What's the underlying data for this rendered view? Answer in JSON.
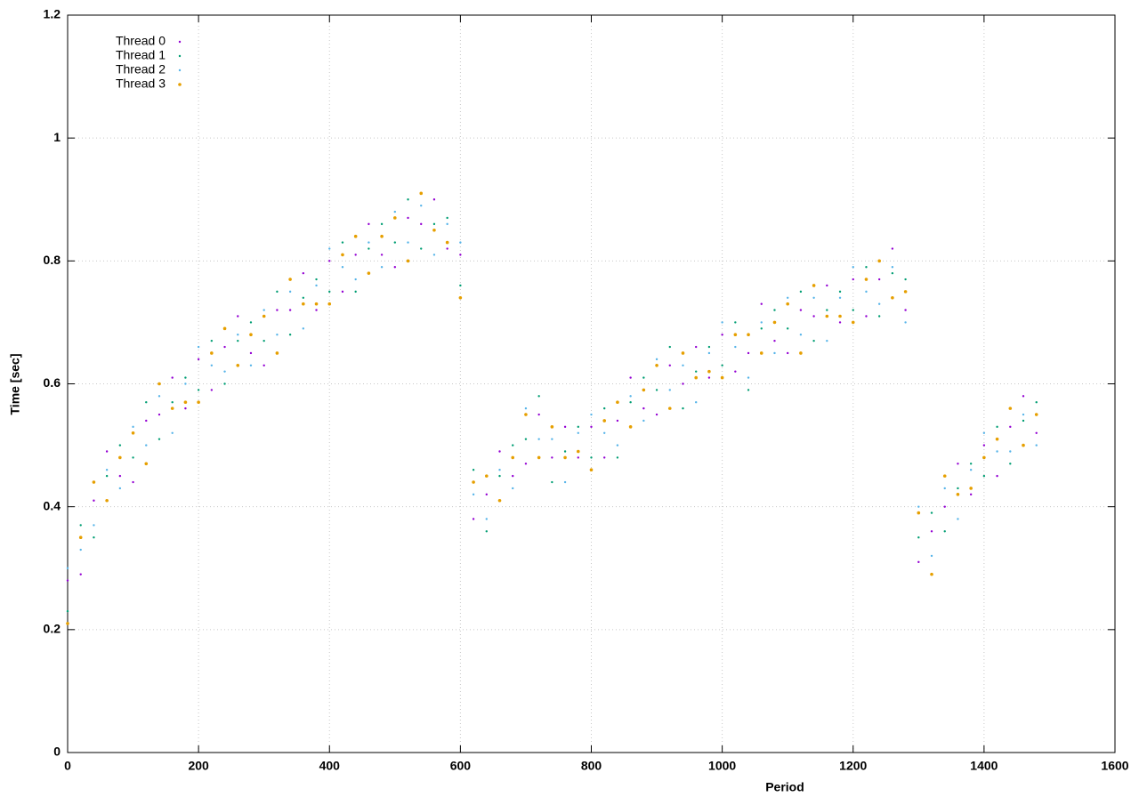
{
  "chart_data": {
    "type": "scatter",
    "xlabel": "Period",
    "ylabel": "Time [sec]",
    "xlim": [
      0,
      1600
    ],
    "xticks": [
      0,
      200,
      400,
      600,
      800,
      1000,
      1200,
      1400,
      1600
    ],
    "ylim": [
      0,
      1.2
    ],
    "yticks": [
      0,
      0.2,
      0.4,
      0.6,
      0.8,
      1,
      1.2
    ],
    "grid": true,
    "legend": "top-left",
    "x": [
      0,
      20,
      40,
      60,
      80,
      100,
      120,
      140,
      160,
      180,
      200,
      220,
      240,
      260,
      280,
      300,
      320,
      340,
      360,
      380,
      400,
      420,
      440,
      460,
      480,
      500,
      520,
      540,
      560,
      580,
      600,
      620,
      640,
      660,
      680,
      700,
      720,
      740,
      760,
      780,
      800,
      820,
      840,
      860,
      880,
      900,
      920,
      940,
      960,
      980,
      1000,
      1020,
      1040,
      1060,
      1080,
      1100,
      1120,
      1140,
      1160,
      1180,
      1200,
      1220,
      1240,
      1260,
      1280,
      1300,
      1320,
      1340,
      1360,
      1380,
      1400,
      1420,
      1440,
      1460,
      1480
    ],
    "series": [
      {
        "name": "Thread 0",
        "color": "#9400d3",
        "values": [
          0.28,
          0.29,
          0.41,
          0.49,
          0.45,
          0.44,
          0.54,
          0.55,
          0.61,
          0.56,
          0.64,
          0.59,
          0.66,
          0.71,
          0.65,
          0.63,
          0.72,
          0.72,
          0.78,
          0.72,
          0.8,
          0.75,
          0.81,
          0.86,
          0.81,
          0.79,
          0.87,
          0.86,
          0.9,
          0.82,
          0.81,
          0.38,
          0.42,
          0.49,
          0.45,
          0.47,
          0.55,
          0.48,
          0.53,
          0.48,
          0.53,
          0.48,
          0.54,
          0.61,
          0.56,
          0.55,
          0.63,
          0.6,
          0.66,
          0.61,
          0.68,
          0.62,
          0.65,
          0.73,
          0.67,
          0.65,
          0.72,
          0.71,
          0.76,
          0.7,
          0.77,
          0.71,
          0.77,
          0.82,
          0.72,
          0.31,
          0.36,
          0.4,
          0.47,
          0.42,
          0.5,
          0.45,
          0.53,
          0.58,
          0.52
        ]
      },
      {
        "name": "Thread 1",
        "color": "#009e73",
        "values": [
          0.23,
          0.37,
          0.35,
          0.45,
          0.5,
          0.48,
          0.57,
          0.51,
          0.57,
          0.61,
          0.59,
          0.67,
          0.6,
          0.67,
          0.7,
          0.67,
          0.75,
          0.68,
          0.74,
          0.77,
          0.75,
          0.83,
          0.75,
          0.82,
          0.86,
          0.83,
          0.9,
          0.82,
          0.86,
          0.87,
          0.76,
          0.46,
          0.36,
          0.45,
          0.5,
          0.51,
          0.58,
          0.44,
          0.49,
          0.53,
          0.48,
          0.56,
          0.48,
          0.57,
          0.61,
          0.59,
          0.66,
          0.56,
          0.62,
          0.66,
          0.63,
          0.7,
          0.59,
          0.69,
          0.72,
          0.69,
          0.75,
          0.67,
          0.72,
          0.75,
          0.72,
          0.79,
          0.71,
          0.78,
          0.77,
          0.35,
          0.39,
          0.36,
          0.43,
          0.47,
          0.45,
          0.53,
          0.47,
          0.54,
          0.57
        ]
      },
      {
        "name": "Thread 2",
        "color": "#56b4e9",
        "values": [
          0.3,
          0.33,
          0.37,
          0.46,
          0.43,
          0.53,
          0.5,
          0.58,
          0.52,
          0.6,
          0.66,
          0.63,
          0.62,
          0.68,
          0.63,
          0.72,
          0.68,
          0.75,
          0.69,
          0.76,
          0.82,
          0.79,
          0.77,
          0.83,
          0.79,
          0.88,
          0.83,
          0.89,
          0.81,
          0.86,
          0.83,
          0.42,
          0.38,
          0.46,
          0.43,
          0.56,
          0.51,
          0.51,
          0.44,
          0.52,
          0.55,
          0.52,
          0.5,
          0.58,
          0.54,
          0.64,
          0.59,
          0.63,
          0.57,
          0.65,
          0.7,
          0.66,
          0.61,
          0.7,
          0.65,
          0.74,
          0.68,
          0.74,
          0.67,
          0.74,
          0.79,
          0.75,
          0.73,
          0.79,
          0.7,
          0.4,
          0.32,
          0.43,
          0.38,
          0.46,
          0.52,
          0.49,
          0.49,
          0.55,
          0.5
        ]
      },
      {
        "name": "Thread 3",
        "color": "#e69f00",
        "values": [
          0.21,
          0.35,
          0.44,
          0.41,
          0.48,
          0.52,
          0.47,
          0.6,
          0.56,
          0.57,
          0.57,
          0.65,
          0.69,
          0.63,
          0.68,
          0.71,
          0.65,
          0.77,
          0.73,
          0.73,
          0.73,
          0.81,
          0.84,
          0.78,
          0.84,
          0.87,
          0.8,
          0.91,
          0.85,
          0.83,
          0.74,
          0.44,
          0.45,
          0.41,
          0.48,
          0.55,
          0.48,
          0.53,
          0.48,
          0.49,
          0.46,
          0.54,
          0.57,
          0.53,
          0.59,
          0.63,
          0.56,
          0.65,
          0.61,
          0.62,
          0.61,
          0.68,
          0.68,
          0.65,
          0.7,
          0.73,
          0.65,
          0.76,
          0.71,
          0.71,
          0.7,
          0.77,
          0.8,
          0.74,
          0.75,
          0.39,
          0.29,
          0.45,
          0.42,
          0.43,
          0.48,
          0.51,
          0.56,
          0.5,
          0.55
        ]
      }
    ]
  }
}
